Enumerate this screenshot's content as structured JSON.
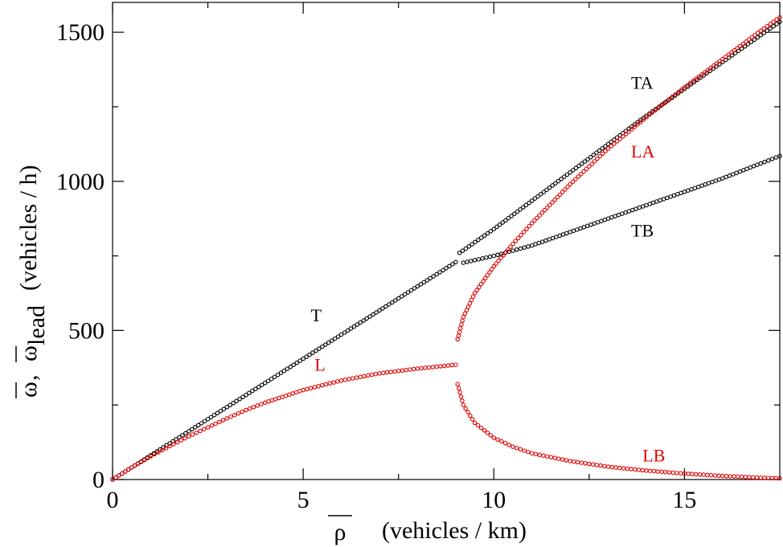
{
  "chart_data": {
    "type": "scatter",
    "xlabel": {
      "symbol": "ρ",
      "unit": "(vehicles / km)"
    },
    "ylabel": {
      "symbol1": "ω",
      "sep": ",",
      "symbol2": "ω",
      "subscript": "lead",
      "unit": "(vehicles / h)"
    },
    "xlim": [
      0,
      17.5
    ],
    "ylim": [
      0,
      1600
    ],
    "x_ticks": [
      0,
      5,
      10,
      15
    ],
    "y_ticks": [
      0,
      500,
      1000,
      1500
    ],
    "grid": false,
    "colors": {
      "black_series": "#000000",
      "red_series": "#e00000"
    },
    "series": [
      {
        "name": "T",
        "color": "black",
        "x": [
          0,
          1,
          2,
          3,
          4,
          5,
          6,
          7,
          8,
          9
        ],
        "y": [
          0,
          81,
          162,
          243,
          324,
          405,
          486,
          567,
          648,
          729
        ]
      },
      {
        "name": "TA",
        "color": "black",
        "x": [
          9.1,
          10,
          11,
          12,
          13,
          14,
          15,
          16,
          17,
          17.5
        ],
        "y": [
          760,
          840,
          935,
          1030,
          1125,
          1220,
          1310,
          1400,
          1490,
          1535
        ]
      },
      {
        "name": "TB",
        "color": "black",
        "x": [
          9.2,
          10,
          11,
          12,
          13,
          14,
          15,
          16,
          17,
          17.5
        ],
        "y": [
          727,
          750,
          785,
          830,
          875,
          920,
          965,
          1010,
          1060,
          1085
        ]
      },
      {
        "name": "L",
        "color": "red",
        "x": [
          0,
          0.5,
          1,
          1.5,
          2,
          2.5,
          3,
          3.5,
          4,
          5,
          6,
          7,
          8,
          9
        ],
        "y": [
          0,
          40,
          78,
          112,
          145,
          175,
          205,
          233,
          258,
          300,
          332,
          356,
          372,
          385
        ]
      },
      {
        "name": "LA",
        "color": "red",
        "x": [
          9.05,
          9.2,
          9.5,
          10,
          10.5,
          11,
          12,
          13,
          14,
          15,
          16,
          17,
          17.5
        ],
        "y": [
          470,
          545,
          625,
          715,
          790,
          860,
          990,
          1110,
          1215,
          1315,
          1410,
          1505,
          1550
        ]
      },
      {
        "name": "LB",
        "color": "red",
        "x": [
          9.05,
          9.2,
          9.5,
          10,
          10.5,
          11,
          12,
          13,
          14,
          15,
          16,
          17,
          17.5
        ],
        "y": [
          320,
          250,
          190,
          140,
          110,
          88,
          62,
          43,
          30,
          20,
          12,
          6,
          4
        ]
      }
    ],
    "annotations": [
      {
        "text": "T",
        "x": 5.2,
        "y": 530,
        "color": "black"
      },
      {
        "text": "L",
        "x": 5.3,
        "y": 365,
        "color": "red"
      },
      {
        "text": "TA",
        "x": 13.6,
        "y": 1310,
        "color": "black"
      },
      {
        "text": "LA",
        "x": 13.6,
        "y": 1080,
        "color": "red"
      },
      {
        "text": "TB",
        "x": 13.6,
        "y": 815,
        "color": "black"
      },
      {
        "text": "LB",
        "x": 13.9,
        "y": 60,
        "color": "red"
      }
    ]
  }
}
